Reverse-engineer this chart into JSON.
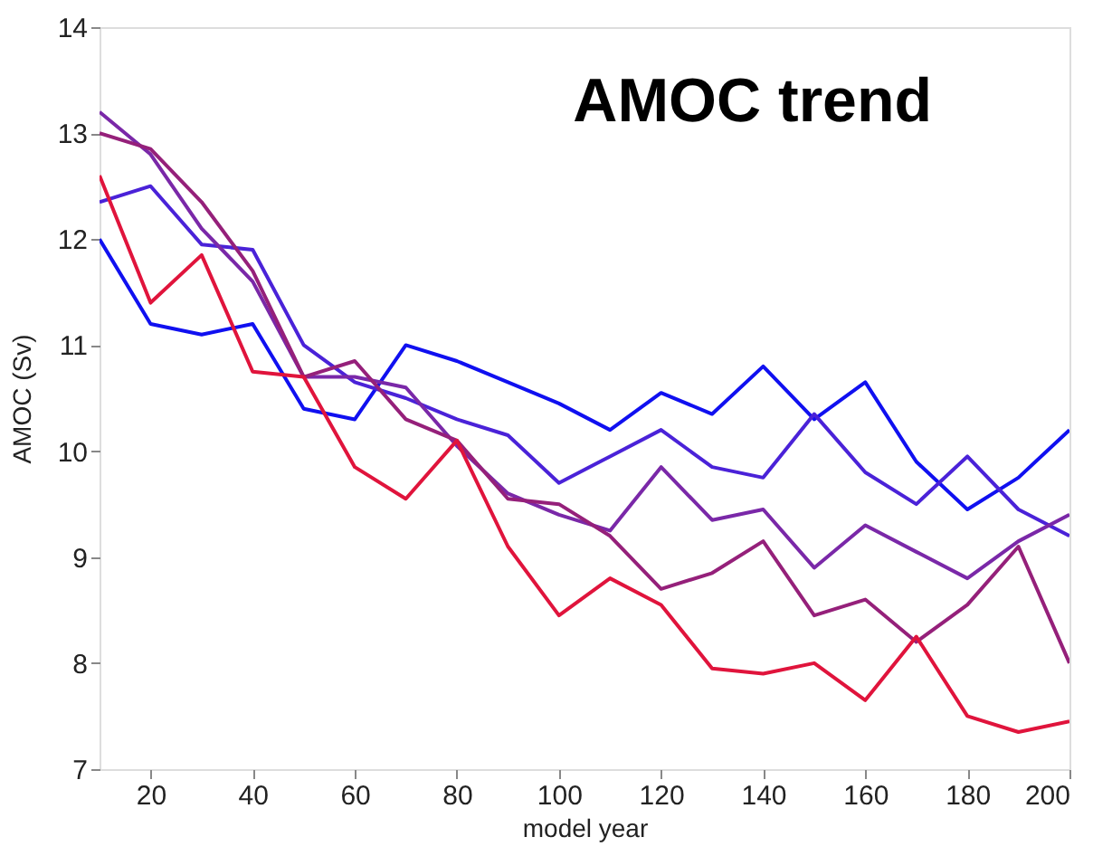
{
  "chart_data": {
    "type": "line",
    "xlabel": "model year",
    "ylabel": "AMOC (Sv)",
    "annotations": [
      "AMOC trend"
    ],
    "x": [
      10,
      20,
      30,
      40,
      50,
      60,
      70,
      80,
      90,
      100,
      110,
      120,
      130,
      140,
      150,
      160,
      170,
      180,
      190,
      200
    ],
    "series": [
      {
        "color": "#1010f0",
        "values": [
          12.0,
          11.2,
          11.1,
          11.2,
          10.4,
          10.3,
          11.0,
          10.85,
          10.65,
          10.45,
          10.2,
          10.55,
          10.35,
          10.8,
          10.3,
          10.65,
          9.9,
          9.45,
          9.75,
          10.2
        ]
      },
      {
        "color": "#4a22d8",
        "values": [
          12.35,
          12.5,
          11.95,
          11.9,
          11.0,
          10.65,
          10.5,
          10.3,
          10.15,
          9.7,
          9.95,
          10.2,
          9.85,
          9.75,
          10.35,
          9.8,
          9.5,
          9.95,
          9.45,
          9.2
        ]
      },
      {
        "color": "#7a28a8",
        "values": [
          13.2,
          12.8,
          12.1,
          11.6,
          10.7,
          10.7,
          10.6,
          10.05,
          9.6,
          9.4,
          9.25,
          9.85,
          9.35,
          9.45,
          8.9,
          9.3,
          9.05,
          8.8,
          9.15,
          9.4
        ]
      },
      {
        "color": "#95207a",
        "values": [
          13.0,
          12.85,
          12.35,
          11.7,
          10.7,
          10.85,
          10.3,
          10.1,
          9.55,
          9.5,
          9.2,
          8.7,
          8.85,
          9.15,
          8.45,
          8.6,
          8.2,
          8.55,
          9.1,
          8.0
        ]
      },
      {
        "color": "#e0143c",
        "values": [
          12.6,
          11.4,
          11.85,
          10.75,
          10.7,
          9.85,
          9.55,
          10.1,
          9.1,
          8.45,
          8.8,
          8.55,
          7.95,
          7.9,
          8.0,
          7.65,
          8.25,
          7.5,
          7.35,
          7.45
        ]
      }
    ],
    "xlim": [
      10,
      200
    ],
    "xticks": [
      20,
      40,
      60,
      80,
      100,
      120,
      140,
      160,
      180,
      200
    ],
    "ylim": [
      7,
      14
    ],
    "yticks": [
      7,
      8,
      9,
      10,
      11,
      12,
      13,
      14
    ],
    "grid": false,
    "legend": false,
    "marker": "none",
    "line_style": "solid"
  }
}
